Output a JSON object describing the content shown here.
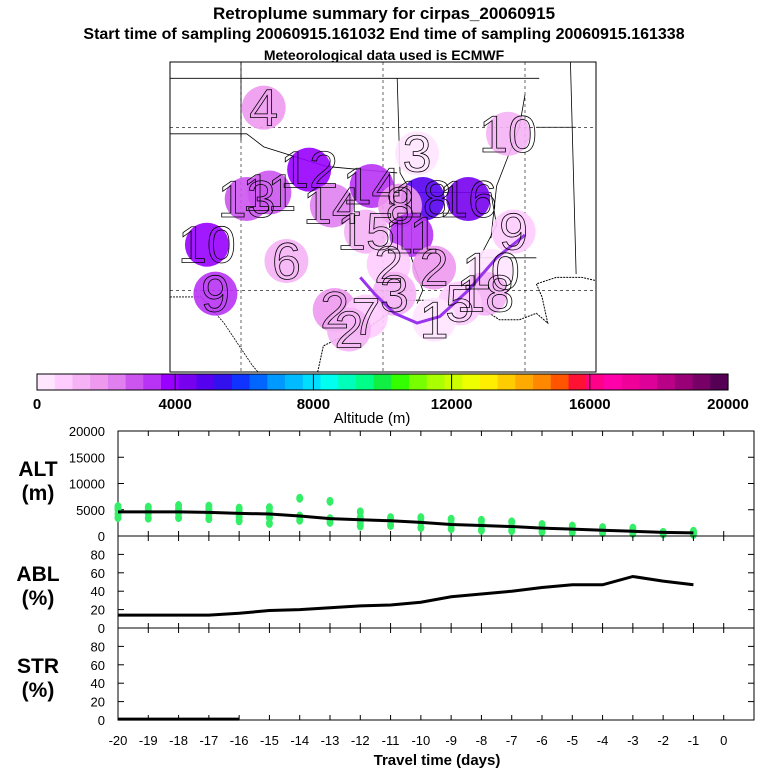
{
  "header": {
    "title": "Retroplume summary for cirpas_20060915",
    "sampling": "Start time of sampling 20060915.161032      End time of sampling 20060915.161338",
    "met": "Meteorological data used is ECMWF"
  },
  "colors": {
    "scale": [
      "#ffe6ff",
      "#ffccff",
      "#f5b3f5",
      "#ee99ee",
      "#e080f0",
      "#cc55f0",
      "#b833f5",
      "#9900ff",
      "#7700ee",
      "#5500ee",
      "#3311ee",
      "#1133ff",
      "#0066ff",
      "#0099ff",
      "#00bbff",
      "#00ddff",
      "#00ffee",
      "#00ffbb",
      "#00ff88",
      "#11ee44",
      "#33ff00",
      "#77ff00",
      "#aaff00",
      "#ccff00",
      "#eeff00",
      "#ffee00",
      "#ffcc00",
      "#ffaa00",
      "#ff8800",
      "#ff5500",
      "#ff1133",
      "#ff0088",
      "#ff00aa",
      "#ee0099",
      "#dd0099",
      "#bb0088",
      "#990077",
      "#770066",
      "#550055"
    ],
    "track_purple": "#9933ee",
    "scatter": "#33ee66",
    "line": "#000000"
  },
  "map": {
    "plume_labels": [
      {
        "n": "4",
        "lon": -99.2,
        "lat": 35.6,
        "level": 3
      },
      {
        "n": "10",
        "lon": -90.6,
        "lat": 34.8,
        "level": 2
      },
      {
        "n": "3",
        "lon": -93.8,
        "lat": 34.2,
        "level": 0
      },
      {
        "n": "12",
        "lon": -97.6,
        "lat": 33.7,
        "level": 7
      },
      {
        "n": "14",
        "lon": -95.4,
        "lat": 33.2,
        "level": 6
      },
      {
        "n": "11",
        "lon": -99.0,
        "lat": 33.0,
        "level": 5
      },
      {
        "n": "13",
        "lon": -99.8,
        "lat": 32.8,
        "level": 5
      },
      {
        "n": "18",
        "lon": -93.6,
        "lat": 32.8,
        "level": 9
      },
      {
        "n": "16",
        "lon": -92.0,
        "lat": 32.8,
        "level": 8
      },
      {
        "n": "14",
        "lon": -96.8,
        "lat": 32.6,
        "level": 4
      },
      {
        "n": "8",
        "lon": -94.4,
        "lat": 32.6,
        "level": 3
      },
      {
        "n": "15",
        "lon": -95.6,
        "lat": 31.8,
        "level": 2
      },
      {
        "n": "11",
        "lon": -94.0,
        "lat": 31.7,
        "level": 6
      },
      {
        "n": "9",
        "lon": -90.4,
        "lat": 31.8,
        "level": 1
      },
      {
        "n": "10",
        "lon": -101.2,
        "lat": 31.4,
        "level": 7
      },
      {
        "n": "6",
        "lon": -98.4,
        "lat": 30.9,
        "level": 2
      },
      {
        "n": "2",
        "lon": -94.8,
        "lat": 30.8,
        "level": 1
      },
      {
        "n": "2",
        "lon": -93.2,
        "lat": 30.7,
        "level": 3
      },
      {
        "n": "10",
        "lon": -91.2,
        "lat": 30.6,
        "level": 0
      },
      {
        "n": "9",
        "lon": -100.9,
        "lat": 29.9,
        "level": 6
      },
      {
        "n": "3",
        "lon": -94.6,
        "lat": 29.9,
        "level": 2
      },
      {
        "n": "18",
        "lon": -91.4,
        "lat": 29.9,
        "level": 2
      },
      {
        "n": "5",
        "lon": -92.3,
        "lat": 29.6,
        "level": 1
      },
      {
        "n": "2",
        "lon": -96.7,
        "lat": 29.4,
        "level": 3
      },
      {
        "n": "7",
        "lon": -95.6,
        "lat": 29.2,
        "level": 1
      },
      {
        "n": "1",
        "lon": -93.2,
        "lat": 29.1,
        "level": 0
      },
      {
        "n": "2",
        "lon": -96.2,
        "lat": 28.8,
        "level": 2
      }
    ],
    "track": [
      [
        -90.0,
        31.7
      ],
      [
        -91.0,
        31.0
      ],
      [
        -92.0,
        30.0
      ],
      [
        -93.0,
        29.2
      ],
      [
        -93.8,
        29.0
      ],
      [
        -94.6,
        29.3
      ],
      [
        -95.3,
        29.9
      ],
      [
        -95.8,
        30.4
      ]
    ]
  },
  "colorbar": {
    "levels": [
      0,
      20000
    ],
    "tick_labels": [
      "0",
      "4000",
      "8000",
      "12000",
      "16000",
      "20000"
    ],
    "label": "Altitude (m)"
  },
  "chart_data": [
    {
      "type": "line",
      "ylabel": "ALT\n(m)",
      "ylabel_lines": [
        "ALT",
        "(m)"
      ],
      "ylim": [
        0,
        20000
      ],
      "yticks": [
        0,
        5000,
        10000,
        15000,
        20000
      ],
      "x": [
        -20,
        -19,
        -18,
        -17,
        -16,
        -15,
        -14,
        -13,
        -12,
        -11,
        -10,
        -9,
        -8,
        -7,
        -6,
        -5,
        -4,
        -3,
        -2,
        -1
      ],
      "series": [
        {
          "name": "median altitude",
          "values": [
            4600,
            4600,
            4600,
            4500,
            4300,
            4200,
            3800,
            3300,
            3100,
            2900,
            2600,
            2200,
            2000,
            1800,
            1500,
            1300,
            1100,
            900,
            700,
            600
          ]
        }
      ],
      "scatter": [
        {
          "x": -20,
          "y": [
            3500,
            4200,
            5000,
            5600
          ]
        },
        {
          "x": -19,
          "y": [
            3400,
            4300,
            4900,
            5500
          ]
        },
        {
          "x": -18,
          "y": [
            3500,
            4400,
            5100,
            5800
          ]
        },
        {
          "x": -17,
          "y": [
            3300,
            4200,
            5000,
            5700
          ]
        },
        {
          "x": -16,
          "y": [
            2900,
            3600,
            4600,
            5300
          ]
        },
        {
          "x": -15,
          "y": [
            2400,
            3500,
            4500,
            5400
          ]
        },
        {
          "x": -14,
          "y": [
            3000,
            3800,
            7200
          ]
        },
        {
          "x": -13,
          "y": [
            2600,
            3300,
            6600
          ]
        },
        {
          "x": -12,
          "y": [
            1900,
            2600,
            3500,
            4600
          ]
        },
        {
          "x": -11,
          "y": [
            2000,
            2900,
            3500
          ]
        },
        {
          "x": -10,
          "y": [
            1600,
            2600,
            3500
          ]
        },
        {
          "x": -9,
          "y": [
            1400,
            2200,
            3200
          ]
        },
        {
          "x": -8,
          "y": [
            1100,
            2100,
            3000
          ]
        },
        {
          "x": -7,
          "y": [
            1000,
            1700,
            2700
          ]
        },
        {
          "x": -6,
          "y": [
            800,
            1500,
            2200
          ]
        },
        {
          "x": -5,
          "y": [
            700,
            1300,
            1900
          ]
        },
        {
          "x": -4,
          "y": [
            600,
            1000,
            1600
          ]
        },
        {
          "x": -3,
          "y": [
            500,
            900,
            1500
          ]
        },
        {
          "x": -2,
          "y": [
            400,
            700
          ]
        },
        {
          "x": -1,
          "y": [
            300,
            600,
            900
          ]
        }
      ]
    },
    {
      "type": "line",
      "ylabel": "ABL\n(%)",
      "ylabel_lines": [
        "ABL",
        "(%)"
      ],
      "ylim": [
        0,
        100
      ],
      "yticks": [
        0,
        20,
        40,
        60,
        80
      ],
      "x": [
        -20,
        -19,
        -18,
        -17,
        -16,
        -15,
        -14,
        -13,
        -12,
        -11,
        -10,
        -9,
        -8,
        -7,
        -6,
        -5,
        -4,
        -3,
        -2,
        -1
      ],
      "series": [
        {
          "name": "ABL fraction",
          "values": [
            14,
            14,
            14,
            14,
            16,
            19,
            20,
            22,
            24,
            25,
            28,
            34,
            37,
            40,
            44,
            47,
            47,
            56,
            51,
            47
          ]
        }
      ]
    },
    {
      "type": "line",
      "ylabel": "STR\n(%)",
      "ylabel_lines": [
        "STR",
        "(%)"
      ],
      "ylim": [
        0,
        100
      ],
      "yticks": [
        0,
        20,
        40,
        60,
        80
      ],
      "xlabel": "Travel time (days)",
      "xticks": [
        -20,
        -19,
        -18,
        -17,
        -16,
        -15,
        -14,
        -13,
        -12,
        -11,
        -10,
        -9,
        -8,
        -7,
        -6,
        -5,
        -4,
        -3,
        -2,
        -1,
        0
      ],
      "xtick_labels": [
        "-20",
        "-19",
        "-18",
        "-17",
        "-16",
        "-15",
        "-14",
        "-13",
        "-12",
        "-11",
        "-10",
        "-9",
        "-8",
        "-7",
        "-6",
        "-5",
        "-4",
        "-3",
        "-2",
        "-1",
        "0"
      ],
      "x": [
        -20,
        -19,
        -18,
        -17,
        -16
      ],
      "series": [
        {
          "name": "stratospheric fraction",
          "values": [
            1,
            1,
            1,
            1,
            1
          ]
        }
      ]
    }
  ]
}
